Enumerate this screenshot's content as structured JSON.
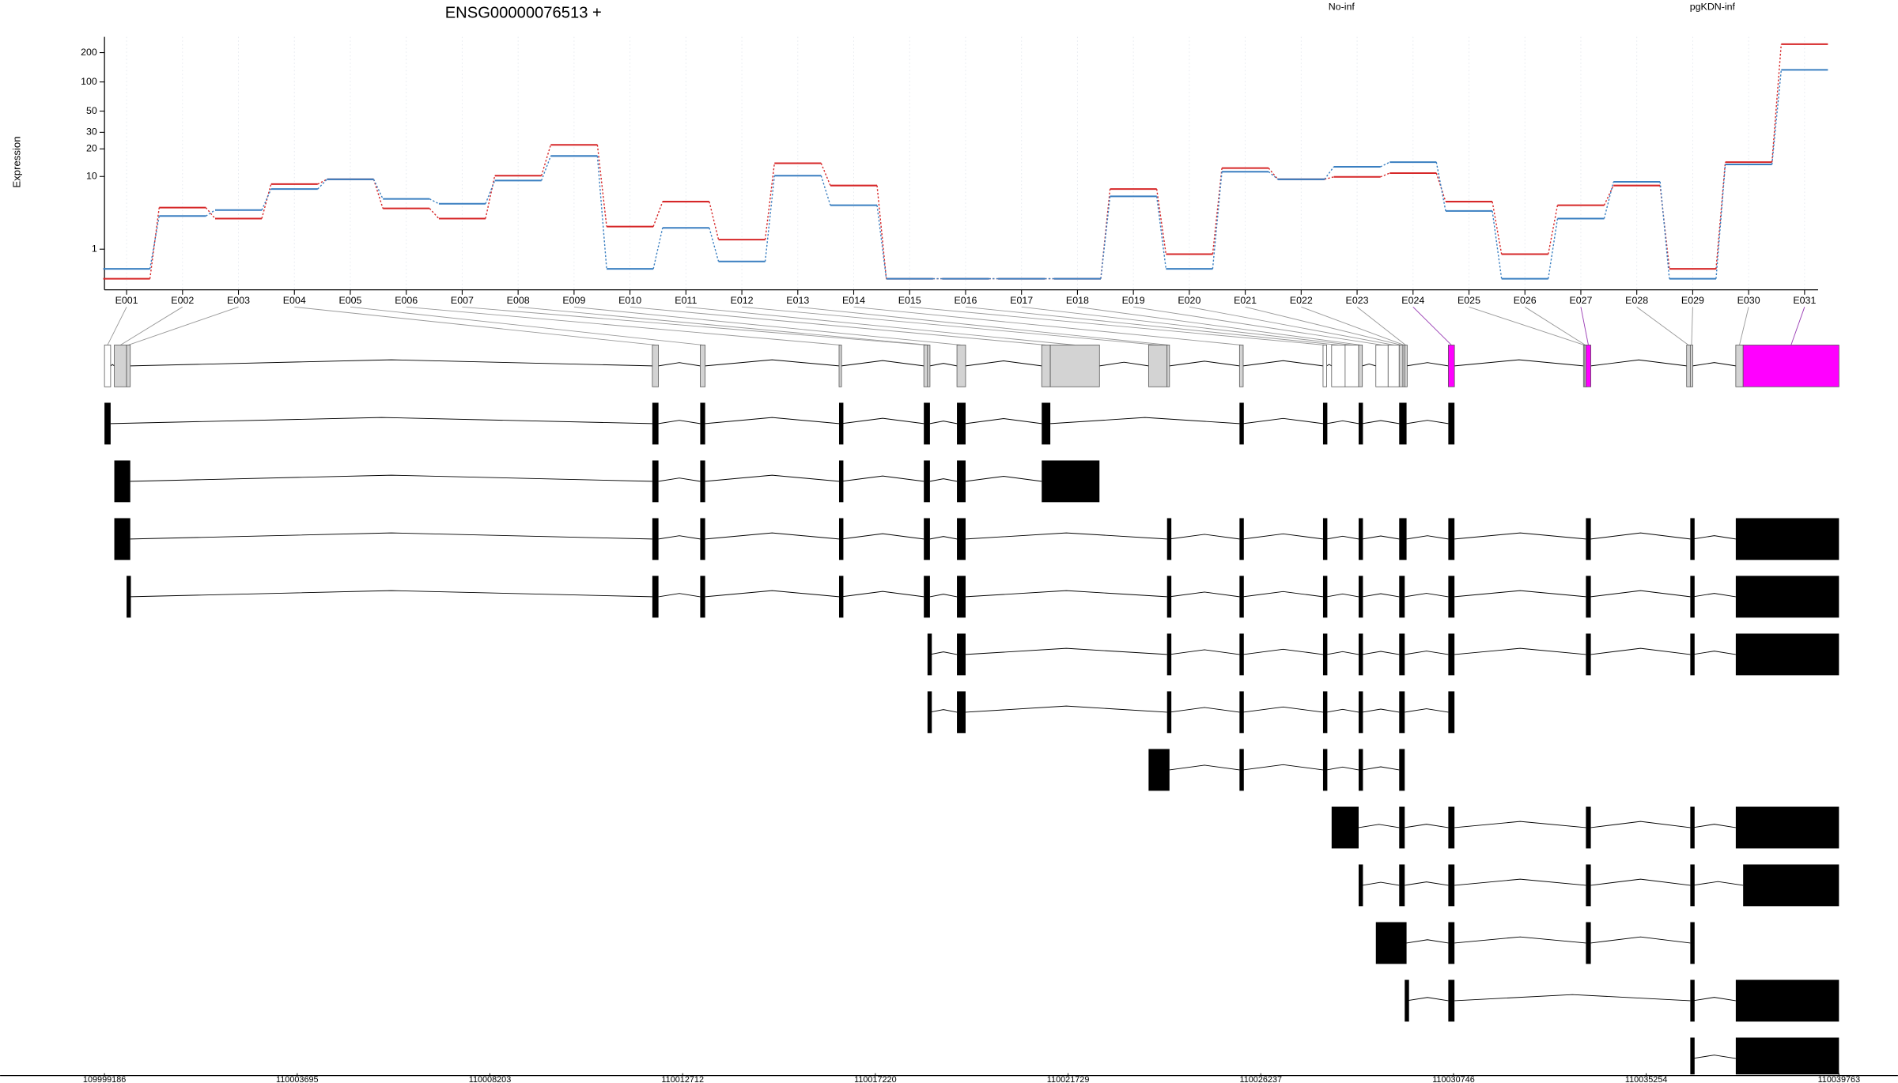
{
  "chart_data": [
    {
      "type": "line",
      "title": "ENSG00000076513 +",
      "ylabel": "Expression",
      "categories": [
        "E001",
        "E002",
        "E003",
        "E004",
        "E005",
        "E006",
        "E007",
        "E008",
        "E009",
        "E010",
        "E011",
        "E012",
        "E013",
        "E014",
        "E015",
        "E016",
        "E017",
        "E018",
        "E019",
        "E020",
        "E021",
        "E022",
        "E023",
        "E024",
        "E025",
        "E026",
        "E027",
        "E028",
        "E029",
        "E030",
        "E031"
      ],
      "series": [
        {
          "name": "No-inf",
          "color": "#d62728",
          "values": [
            0,
            4.3,
            3.1,
            8.2,
            9.3,
            4.2,
            3.1,
            10.2,
            22.1,
            2.4,
            5.1,
            1.5,
            14.0,
            7.9,
            0,
            0,
            0,
            0,
            7.2,
            0.78,
            12.4,
            9.3,
            9.9,
            10.9,
            5.1,
            0.78,
            4.6,
            7.9,
            0.26,
            14.4,
            244
          ]
        },
        {
          "name": "pgKDN-inf",
          "color": "#3a7fc1",
          "values": [
            0.26,
            3.35,
            4.0,
            7.2,
            9.3,
            5.5,
            4.8,
            9.0,
            16.8,
            0.26,
            2.3,
            0.5,
            10.2,
            4.6,
            0,
            0,
            0,
            0,
            5.9,
            0.26,
            11.3,
            9.3,
            12.8,
            14.4,
            3.9,
            0,
            3.1,
            8.7,
            0,
            13.6,
            133
          ]
        }
      ],
      "yscale": "log10(x+1)",
      "ylim": [
        0,
        290
      ],
      "yticks": [
        1,
        10,
        20,
        30,
        50,
        100,
        200
      ],
      "grid": true
    },
    {
      "type": "gene-model",
      "exons": [
        [
          109999186,
          109999330
        ],
        [
          109999416,
          109999703
        ],
        [
          109999703,
          109999789
        ],
        [
          110012003,
          110012146
        ],
        [
          110013123,
          110013238
        ],
        [
          110016371,
          110016428
        ],
        [
          110018354,
          110018440
        ],
        [
          110018440,
          110018497
        ],
        [
          110019129,
          110019331
        ],
        [
          110021112,
          110021313
        ],
        [
          110021313,
          110022463
        ],
        [
          110023612,
          110024044
        ],
        [
          110024044,
          110024101
        ],
        [
          110025739,
          110025825
        ],
        [
          110027693,
          110027779
        ],
        [
          110027894,
          110028210
        ],
        [
          110028210,
          110028526
        ],
        [
          110028526,
          110028613
        ],
        [
          110028929,
          110029216
        ],
        [
          110029216,
          110029475
        ],
        [
          110029475,
          110029561
        ],
        [
          110029561,
          110029604
        ],
        [
          110029604,
          110029647
        ],
        [
          110030624,
          110030768
        ],
        [
          110033786,
          110033814
        ],
        [
          110033814,
          110033843
        ],
        [
          110033843,
          110033958
        ],
        [
          110036199,
          110036285
        ],
        [
          110036285,
          110036343
        ],
        [
          110037349,
          110037521
        ],
        [
          110037521,
          110039763
        ]
      ],
      "exon_colors": [
        "#ffffff",
        "#d3d3d3",
        "#d3d3d3",
        "#d3d3d3",
        "#d3d3d3",
        "#d3d3d3",
        "#d3d3d3",
        "#d3d3d3",
        "#d3d3d3",
        "#d3d3d3",
        "#d3d3d3",
        "#d3d3d3",
        "#d3d3d3",
        "#d3d3d3",
        "#ffffff",
        "#ffffff",
        "#ffffff",
        "#d3d3d3",
        "#ffffff",
        "#ffffff",
        "#d3d3d3",
        "#d3d3d3",
        "#d3d3d3",
        "#ff00ff",
        "#d3d3d3",
        "#d3d3d3",
        "#ff00ff",
        "#d3d3d3",
        "#d3d3d3",
        "#d3d3d3",
        "#ff00ff"
      ],
      "highlight_color": "#ff00ff",
      "highlight_link_color": "#9b3fb5",
      "link_color": "#9a9a9a",
      "transcript_color": "#000000",
      "transcripts": [
        [
          0,
          3,
          4,
          5,
          6,
          7,
          8,
          9,
          13,
          14,
          17,
          20,
          21,
          22,
          23
        ],
        [
          1,
          2,
          3,
          4,
          5,
          6,
          7,
          8,
          9,
          10
        ],
        [
          1,
          2,
          3,
          4,
          5,
          6,
          7,
          8,
          12,
          13,
          14,
          17,
          20,
          21,
          22,
          23,
          26,
          28,
          29,
          30
        ],
        [
          2,
          3,
          4,
          5,
          6,
          7,
          8,
          12,
          13,
          14,
          17,
          20,
          21,
          23,
          26,
          28,
          29,
          30
        ],
        [
          7,
          8,
          12,
          13,
          14,
          17,
          20,
          21,
          23,
          26,
          28,
          29,
          30
        ],
        [
          7,
          8,
          12,
          13,
          14,
          17,
          20,
          21,
          23
        ],
        [
          11,
          12,
          13,
          14,
          17,
          20,
          21
        ],
        [
          15,
          16,
          20,
          21,
          23,
          26,
          28,
          29,
          30
        ],
        [
          17,
          20,
          21,
          23,
          26,
          28,
          30
        ],
        [
          18,
          19,
          20,
          21,
          22,
          23,
          26,
          28
        ],
        [
          22,
          23,
          28,
          29,
          30
        ],
        [
          28,
          29,
          30
        ]
      ],
      "xlim": [
        109999186,
        110039763
      ],
      "xticks": [
        109999186,
        110003695,
        110008203,
        110012712,
        110017220,
        110021729,
        110026237,
        110030746,
        110035254,
        110039763
      ]
    }
  ]
}
